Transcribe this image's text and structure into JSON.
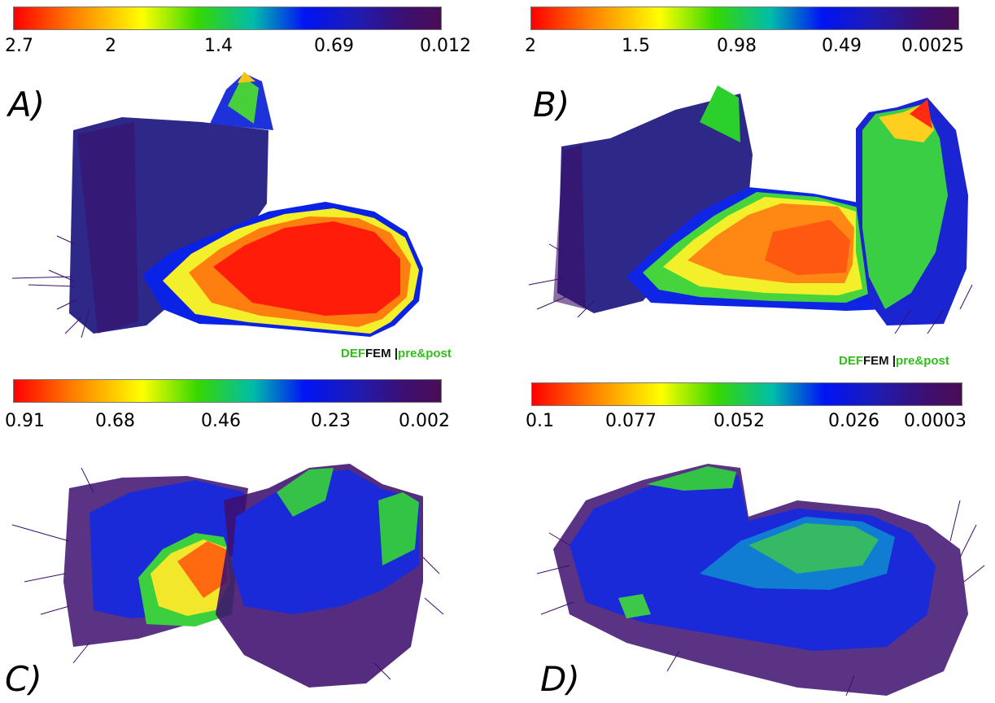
{
  "colormap": [
    "#ff0000",
    "#ff7f00",
    "#ffff00",
    "#36d800",
    "#00bdaa",
    "#0014f5",
    "#1e1bb4",
    "#3d0f6e",
    "#4a0d57"
  ],
  "panels": [
    {
      "id": "A",
      "label": "A)",
      "colorbar_ticks": [
        "2.7",
        "2",
        "1.4",
        "0.69",
        "0.012"
      ],
      "watermark": {
        "part1": "DEF",
        "part2": "FEM",
        "sep": " |",
        "part3": "pre&post"
      }
    },
    {
      "id": "B",
      "label": "B)",
      "colorbar_ticks": [
        "2",
        "1.5",
        "0.98",
        "0.49",
        "0.0025"
      ],
      "watermark": {
        "part1": "DEF",
        "part2": "FEM",
        "sep": " |",
        "part3": "pre&post"
      }
    },
    {
      "id": "C",
      "label": "C)",
      "colorbar_ticks": [
        "0.91",
        "0.68",
        "0.46",
        "0.23",
        "0.002"
      ]
    },
    {
      "id": "D",
      "label": "D)",
      "colorbar_ticks": [
        "0.1",
        "0.077",
        "0.052",
        "0.026",
        "0.0003"
      ]
    }
  ]
}
